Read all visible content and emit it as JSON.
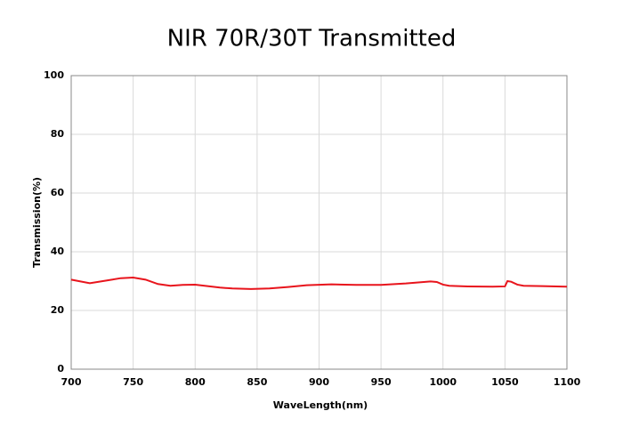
{
  "chart_data": {
    "type": "line",
    "title": "NIR 70R/30T Transmitted",
    "x_label": "WaveLength(nm)",
    "y_label": "Transmission(%)",
    "x": [
      700,
      715,
      730,
      740,
      750,
      760,
      770,
      780,
      790,
      800,
      810,
      820,
      830,
      845,
      860,
      875,
      890,
      910,
      930,
      950,
      970,
      990,
      995,
      1000,
      1005,
      1020,
      1040,
      1050,
      1052,
      1055,
      1060,
      1065,
      1080,
      1100
    ],
    "values": [
      30.5,
      29.3,
      30.3,
      31.0,
      31.2,
      30.5,
      29.0,
      28.4,
      28.7,
      28.8,
      28.3,
      27.8,
      27.5,
      27.3,
      27.5,
      28.0,
      28.6,
      28.9,
      28.7,
      28.7,
      29.2,
      29.9,
      29.7,
      28.8,
      28.4,
      28.2,
      28.1,
      28.2,
      30.0,
      29.8,
      28.8,
      28.4,
      28.3,
      28.1
    ],
    "color": "#e8141c",
    "xlim": [
      700,
      1100
    ],
    "xticks": [
      700,
      750,
      800,
      850,
      900,
      950,
      1000,
      1050,
      1100
    ],
    "ylim": [
      0,
      100
    ],
    "yticks": [
      0,
      20,
      40,
      60,
      80,
      100
    ],
    "grid": true
  }
}
